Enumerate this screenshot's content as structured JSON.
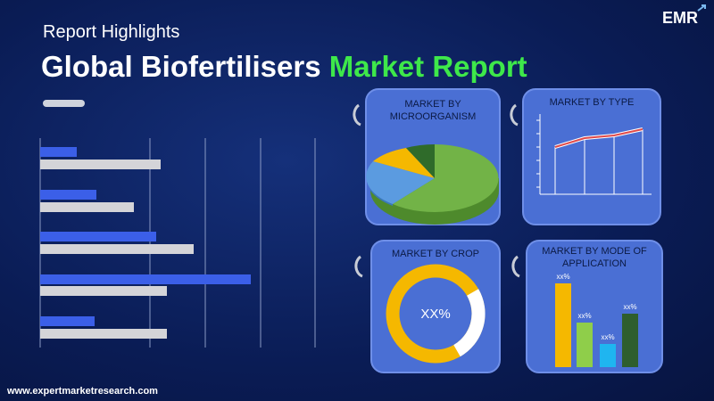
{
  "header": {
    "subtitle": "Report Highlights",
    "title": "Global Biofertilisers",
    "title_highlight": "Market Report"
  },
  "logo": {
    "text": "EMR"
  },
  "panels": [
    {
      "title": "MARKET BY MICROORGANISM"
    },
    {
      "title": "MARKET BY TYPE"
    },
    {
      "title": "MARKET BY CROP",
      "center_label": "XX%"
    },
    {
      "title": "MARKET BY MODE OF APPLICATION",
      "bar_labels": [
        "xx%",
        "xx%",
        "xx%",
        "xx%"
      ]
    }
  ],
  "footer": {
    "url": "www.expertmarketresearch.com"
  }
}
